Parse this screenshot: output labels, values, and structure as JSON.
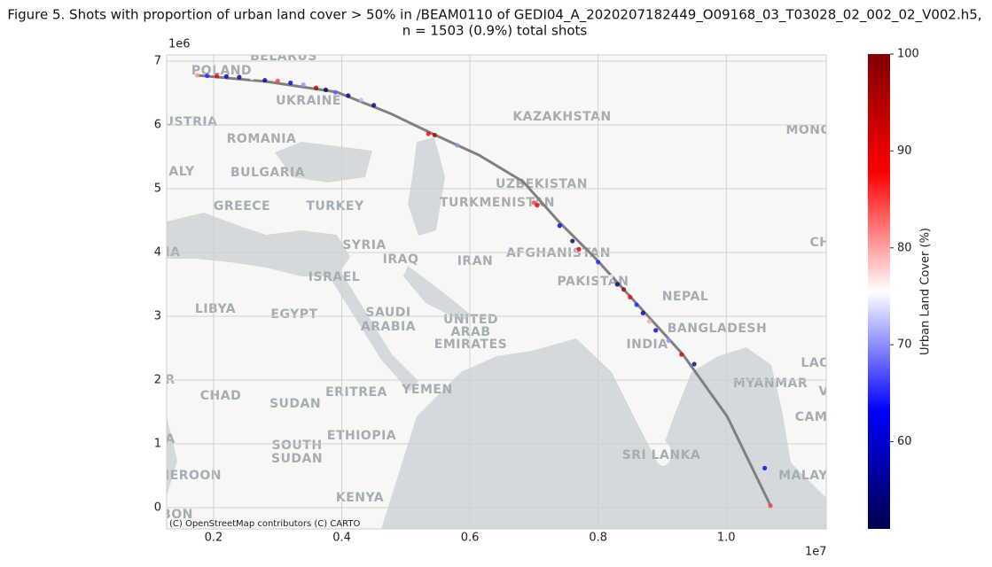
{
  "chart_data": {
    "type": "scatter",
    "title_lines": [
      "Figure 5. Shots with proportion of urban land cover > 50% in /BEAM0110 of GEDI04_A_2020207182449_O09168_03_T03028_02_002_02_V002.h5,",
      "n = 1503 (0.9%) total shots"
    ],
    "x_offset": "1e7",
    "y_offset": "1e6",
    "xlim": [
      0.1267,
      1.156
    ],
    "ylim": [
      -0.333,
      7.097
    ],
    "xticks": [
      0.2,
      0.4,
      0.6,
      0.8,
      {
        "value": 1,
        "label": "1.0"
      }
    ],
    "yticks": [
      0,
      1,
      2,
      3,
      4,
      5,
      6,
      7
    ],
    "grid": true,
    "track": {
      "color": "#808080",
      "x": [
        0.1737,
        0.2817,
        0.3924,
        0.4754,
        0.5446,
        0.6138,
        0.683,
        0.7384,
        0.7938,
        0.863,
        0.9322,
        1.0014,
        1.0692
      ],
      "y": [
        6.778,
        6.681,
        6.514,
        6.181,
        5.847,
        5.528,
        5.111,
        4.486,
        3.931,
        3.167,
        2.403,
        1.431,
        0.028
      ]
    },
    "x": [
      0.174,
      0.19,
      0.205,
      0.22,
      0.24,
      0.26,
      0.28,
      0.3,
      0.32,
      0.34,
      0.36,
      0.375,
      0.39,
      0.41,
      0.43,
      0.45,
      0.535,
      0.545,
      0.58,
      0.7,
      0.705,
      0.74,
      0.76,
      0.77,
      0.8,
      0.82,
      0.83,
      0.84,
      0.85,
      0.86,
      0.87,
      0.88,
      0.89,
      0.91,
      0.93,
      0.95,
      1.06,
      1.069
    ],
    "y": [
      6.778,
      6.77,
      6.765,
      6.76,
      6.75,
      6.735,
      6.7,
      6.69,
      6.66,
      6.63,
      6.58,
      6.55,
      6.51,
      6.46,
      6.39,
      6.31,
      5.86,
      5.84,
      5.68,
      4.78,
      4.74,
      4.42,
      4.18,
      4.05,
      3.85,
      3.62,
      3.5,
      3.42,
      3.3,
      3.18,
      3.05,
      2.92,
      2.78,
      2.62,
      2.4,
      2.25,
      0.62,
      0.03
    ],
    "values": [
      80,
      65,
      90,
      60,
      55,
      75,
      58,
      85,
      60,
      70,
      95,
      52,
      68,
      58,
      72,
      55,
      88,
      95,
      70,
      85,
      90,
      60,
      52,
      90,
      65,
      75,
      55,
      95,
      88,
      65,
      58,
      80,
      60,
      70,
      90,
      55,
      62,
      85
    ],
    "colormap": "seismic",
    "clim": [
      51,
      100
    ],
    "cticks": [
      60,
      70,
      80,
      90,
      100
    ],
    "colorbar_label": "Urban Land Cover (%)",
    "attribution": "(C) OpenStreetMap contributors (C) CARTO",
    "map_labels": [
      "BELARUS",
      "POLAND",
      "UKRAINE",
      "USTRIA",
      "ROMANIA",
      "KAZAKHSTAN",
      "MONG",
      "ALY",
      "BULGARIA",
      "GREECE",
      "TURKEY",
      "UZBEKISTAN",
      "TURKMENISTAN",
      "SYRIA",
      "IRAQ",
      "IRAN",
      "AFGHANISTAN",
      "CH",
      "IA",
      "ISRAEL",
      "PAKISTAN",
      "NEPAL",
      "LIBYA",
      "EGYPT",
      "SAUDI",
      "ARABIA",
      "UNITED",
      "ARAB",
      "EMIRATES",
      "INDIA",
      "BANGLADESH",
      "LAO",
      "R",
      "MYANMAR",
      "V",
      "CHAD",
      "ERITREA",
      "YEMEN",
      "SUDAN",
      "CAM",
      "A",
      "SOUTH",
      "SUDAN",
      "ETHIOPIA",
      "SRI LANKA",
      "IEROON",
      "MALAY",
      "KENYA",
      "BON"
    ]
  }
}
